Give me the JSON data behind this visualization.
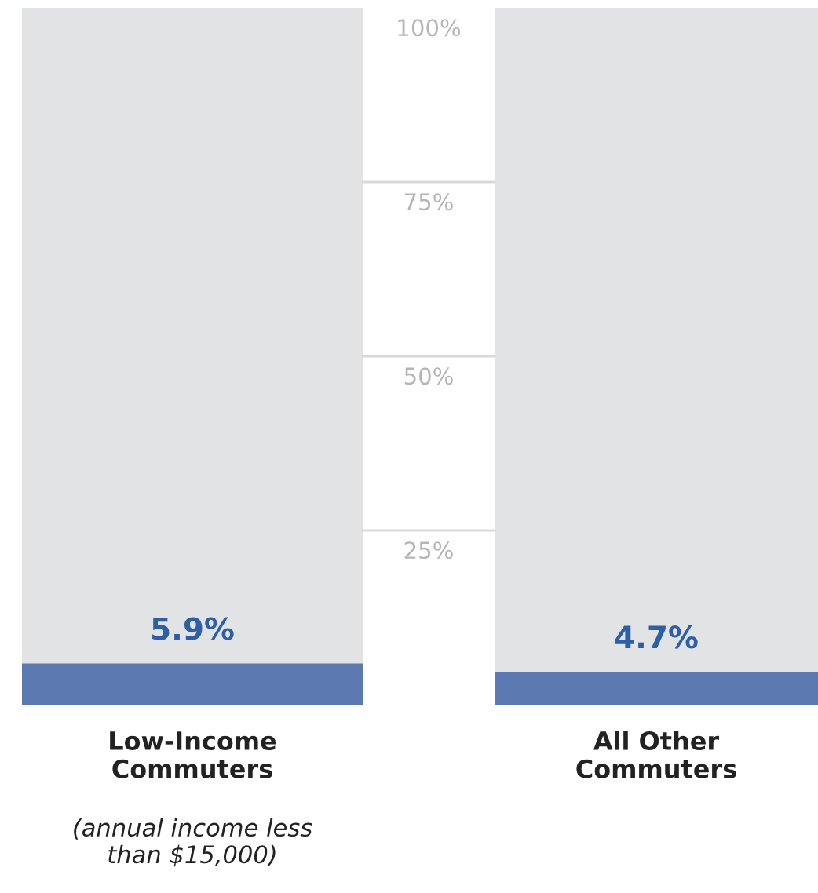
{
  "chart_data": {
    "type": "bar",
    "categories": [
      "Low-Income\nCommuters",
      "All Other\nCommuters"
    ],
    "values": [
      5.9,
      4.7
    ],
    "value_labels": [
      "5.9%",
      "4.7%"
    ],
    "color": "#5d79b2",
    "ylim": [
      0,
      100
    ],
    "yticks": [
      {
        "value": 25,
        "label": "25%"
      },
      {
        "value": 50,
        "label": "50%"
      },
      {
        "value": 75,
        "label": "75%"
      },
      {
        "value": 100,
        "label": "100%"
      }
    ],
    "annotations": [
      "(annual income less\nthan $15,000)"
    ]
  }
}
